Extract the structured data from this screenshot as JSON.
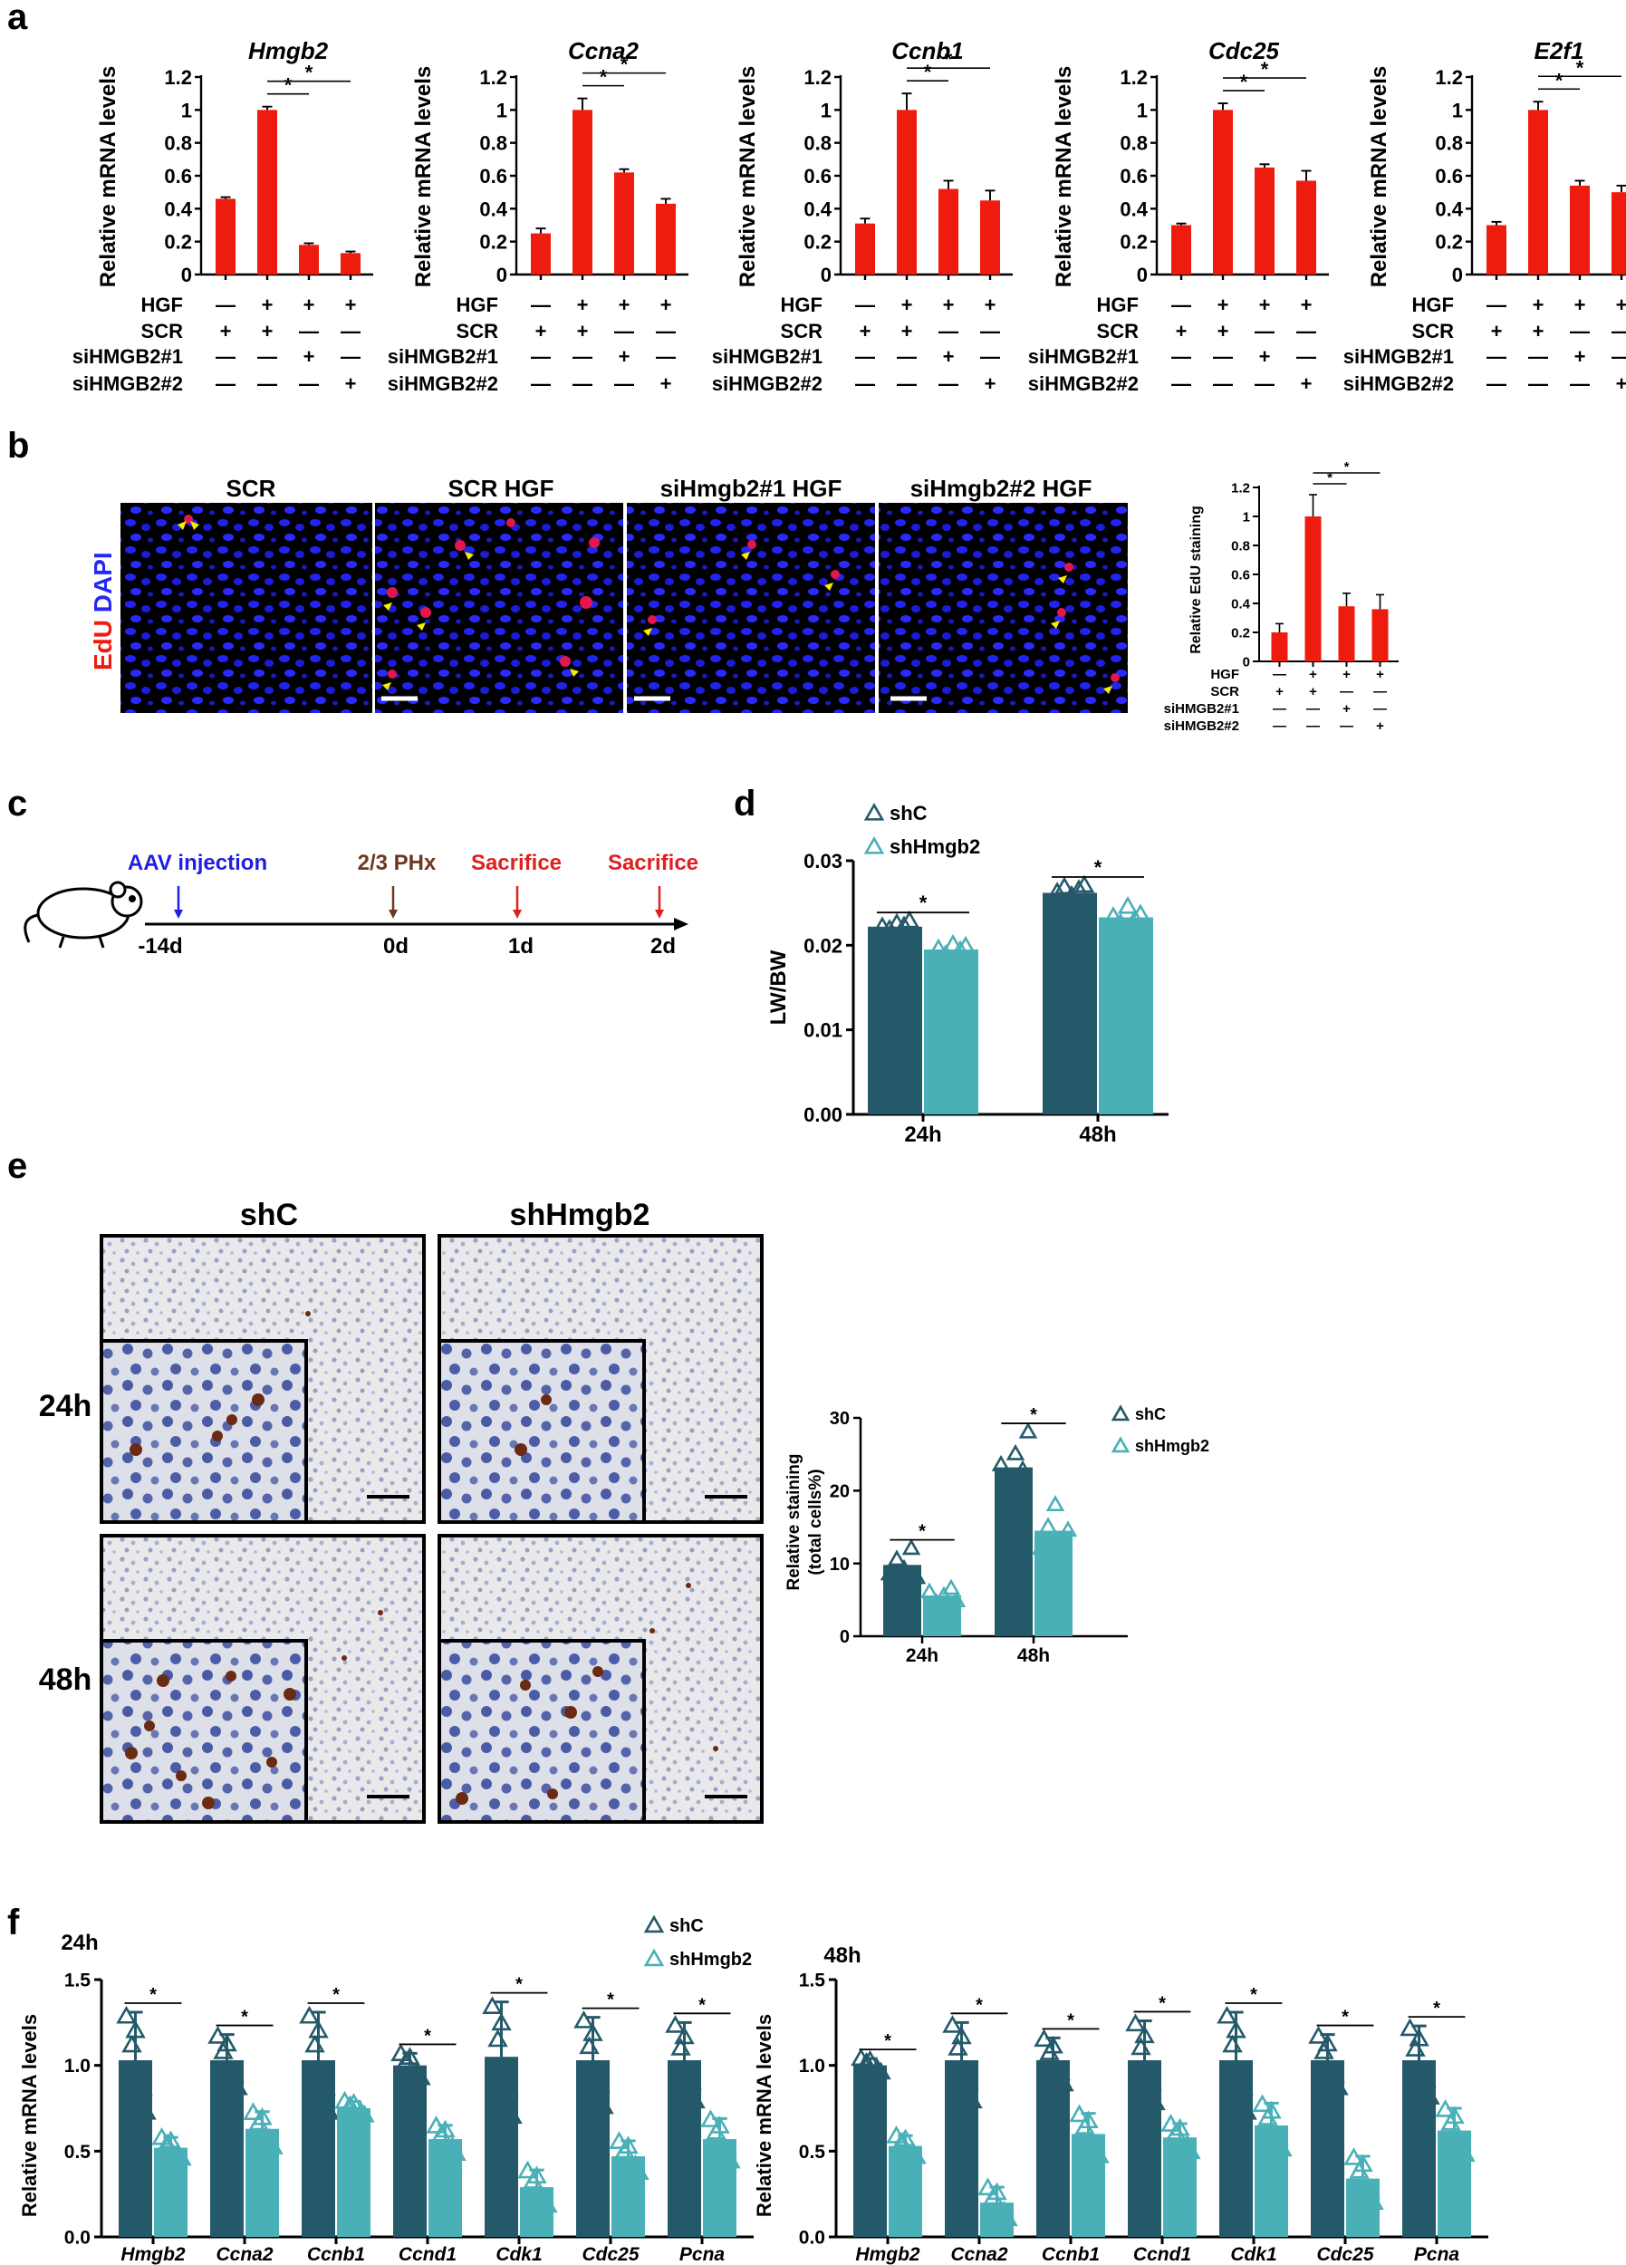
{
  "panel_labels": {
    "a": "a",
    "b": "b",
    "c": "c",
    "d": "d",
    "e": "e",
    "f": "f"
  },
  "panel_a": {
    "ylabel": "Relative mRNA levels",
    "yticks": [
      "0",
      "0.2",
      "0.4",
      "0.6",
      "0.8",
      "1",
      "1.2"
    ],
    "row_labels": [
      "HGF",
      "SCR",
      "siHMGB2#1",
      "siHMGB2#2"
    ],
    "signs": [
      [
        "—",
        "+",
        "+",
        "+"
      ],
      [
        "+",
        "+",
        "—",
        "—"
      ],
      [
        "—",
        "—",
        "+",
        "—"
      ],
      [
        "—",
        "—",
        "—",
        "+"
      ]
    ],
    "sig": "*"
  },
  "panel_b": {
    "ylabel": "Relative EdU staining",
    "yticks": [
      "0",
      "0.2",
      "0.4",
      "0.6",
      "0.8",
      "1",
      "1.2"
    ],
    "image_titles": [
      "SCR",
      "SCR HGF",
      "siHmgb2#1 HGF",
      "siHmgb2#2 HGF"
    ],
    "stain_label_edu": "EdU",
    "stain_label_dapi": "DAPI",
    "row_labels": [
      "HGF",
      "SCR",
      "siHMGB2#1",
      "siHMGB2#2"
    ],
    "signs": [
      [
        "—",
        "+",
        "+",
        "+"
      ],
      [
        "+",
        "+",
        "—",
        "—"
      ],
      [
        "—",
        "—",
        "+",
        "—"
      ],
      [
        "—",
        "—",
        "—",
        "+"
      ]
    ],
    "sig": "*"
  },
  "panel_c": {
    "events": [
      "AAV injection",
      "2/3 PHx",
      "Sacrifice",
      "Sacrifice"
    ],
    "days": [
      "-14d",
      "0d",
      "1d",
      "2d"
    ],
    "colors": {
      "aav": "#1f1fe0",
      "phx": "#6b3a1e",
      "sac": "#e01f1f"
    }
  },
  "panel_d": {
    "ylabel": "LW/BW",
    "yticks": [
      "0.00",
      "0.01",
      "0.02",
      "0.03"
    ],
    "legend": [
      "shC",
      "shHmgb2"
    ],
    "sig": "*"
  },
  "panel_e": {
    "col_titles": [
      "shC",
      "shHmgb2"
    ],
    "row_titles": [
      "24h",
      "48h"
    ],
    "ylabel1": "Relative staining",
    "ylabel2": "(total cells%)",
    "yticks": [
      "0",
      "10",
      "20",
      "30"
    ],
    "legend": [
      "shC",
      "shHmgb2"
    ],
    "sig": "*"
  },
  "panel_f": {
    "titles": [
      "24h",
      "48h"
    ],
    "ylabel": "Relative mRNA levels",
    "yticks": [
      "0.0",
      "0.5",
      "1.0",
      "1.5"
    ],
    "legend": [
      "shC",
      "shHmgb2"
    ],
    "sig": "*"
  },
  "colors": {
    "red": "#ee1c0e",
    "dark": "#24596a",
    "light": "#4ab0b8"
  },
  "chart_data": [
    {
      "type": "bar",
      "panel": "a",
      "title": "Hmgb2",
      "categories": [
        "1",
        "2",
        "3",
        "4"
      ],
      "values": [
        0.46,
        1.0,
        0.18,
        0.13
      ],
      "errors": [
        0.01,
        0.02,
        0.01,
        0.01
      ],
      "ylim": [
        0,
        1.2
      ],
      "ylabel": "Relative mRNA levels"
    },
    {
      "type": "bar",
      "panel": "a",
      "title": "Ccna2",
      "categories": [
        "1",
        "2",
        "3",
        "4"
      ],
      "values": [
        0.25,
        1.0,
        0.62,
        0.43
      ],
      "errors": [
        0.03,
        0.07,
        0.02,
        0.03
      ],
      "ylim": [
        0,
        1.2
      ],
      "ylabel": "Relative mRNA levels"
    },
    {
      "type": "bar",
      "panel": "a",
      "title": "Ccnb1",
      "categories": [
        "1",
        "2",
        "3",
        "4"
      ],
      "values": [
        0.31,
        1.0,
        0.52,
        0.45
      ],
      "errors": [
        0.03,
        0.1,
        0.05,
        0.06
      ],
      "ylim": [
        0,
        1.2
      ],
      "ylabel": "Relative mRNA levels"
    },
    {
      "type": "bar",
      "panel": "a",
      "title": "Cdc25",
      "categories": [
        "1",
        "2",
        "3",
        "4"
      ],
      "values": [
        0.3,
        1.0,
        0.65,
        0.57
      ],
      "errors": [
        0.01,
        0.04,
        0.02,
        0.06
      ],
      "ylim": [
        0,
        1.2
      ],
      "ylabel": "Relative mRNA levels"
    },
    {
      "type": "bar",
      "panel": "a",
      "title": "E2f1",
      "categories": [
        "1",
        "2",
        "3",
        "4"
      ],
      "values": [
        0.3,
        1.0,
        0.54,
        0.5
      ],
      "errors": [
        0.02,
        0.05,
        0.03,
        0.04
      ],
      "ylim": [
        0,
        1.2
      ],
      "ylabel": "Relative mRNA levels"
    },
    {
      "type": "bar",
      "panel": "b",
      "categories": [
        "1",
        "2",
        "3",
        "4"
      ],
      "values": [
        0.2,
        1.0,
        0.38,
        0.36
      ],
      "errors": [
        0.06,
        0.15,
        0.09,
        0.1
      ],
      "ylim": [
        0,
        1.2
      ],
      "ylabel": "Relative EdU staining"
    },
    {
      "type": "bar",
      "panel": "d",
      "categories": [
        "24h",
        "48h"
      ],
      "series": [
        {
          "name": "shC",
          "values": [
            0.0222,
            0.0262
          ],
          "points": [
            [
              0.0221,
              0.0218,
              0.0225,
              0.0222,
              0.0228
            ],
            [
              0.0262,
              0.0268,
              0.0258,
              0.0265,
              0.027
            ]
          ]
        },
        {
          "name": "shHmgb2",
          "values": [
            0.0195,
            0.0233
          ],
          "points": [
            [
              0.0195,
              0.0188,
              0.02,
              0.0193,
              0.0198
            ],
            [
              0.0233,
              0.0225,
              0.0245,
              0.023,
              0.0236
            ]
          ]
        }
      ],
      "ylim": [
        0,
        0.03
      ],
      "ylabel": "LW/BW"
    },
    {
      "type": "bar",
      "panel": "e",
      "categories": [
        "24h",
        "48h"
      ],
      "series": [
        {
          "name": "shC",
          "values": [
            9.8,
            23.2
          ],
          "points": [
            [
              8.5,
              10.5,
              9.2,
              12.0,
              8.0
            ],
            [
              23.5,
              21.0,
              25.0,
              22.8,
              28.0
            ]
          ]
        },
        {
          "name": "shHmgb2",
          "values": [
            5.6,
            14.5
          ],
          "points": [
            [
              6.0,
              4.5,
              5.5,
              6.5,
              4.8
            ],
            [
              12.0,
              15.0,
              18.0,
              13.0,
              14.5
            ]
          ]
        }
      ],
      "ylim": [
        0,
        30
      ],
      "ylabel": "Relative staining (total cells%)"
    },
    {
      "type": "bar",
      "panel": "f",
      "title": "24h",
      "categories": [
        "Hmgb2",
        "Ccna2",
        "Ccnb1",
        "Ccnd1",
        "Cdk1",
        "Cdc25",
        "Pcna"
      ],
      "series": [
        {
          "name": "shC",
          "values": [
            1.03,
            1.03,
            1.03,
            1.0,
            1.05,
            1.03,
            1.03
          ],
          "errors": [
            0.28,
            0.15,
            0.28,
            0.07,
            0.32,
            0.25,
            0.22
          ]
        },
        {
          "name": "shHmgb2",
          "values": [
            0.52,
            0.63,
            0.75,
            0.57,
            0.29,
            0.47,
            0.57
          ],
          "errors": [
            0.06,
            0.1,
            0.04,
            0.08,
            0.1,
            0.09,
            0.12
          ]
        }
      ],
      "ylim": [
        0,
        1.5
      ],
      "ylabel": "Relative mRNA levels"
    },
    {
      "type": "bar",
      "panel": "f",
      "title": "48h",
      "categories": [
        "Hmgb2",
        "Ccna2",
        "Ccnb1",
        "Ccnd1",
        "Cdk1",
        "Cdc25",
        "Pcna"
      ],
      "series": [
        {
          "name": "shC",
          "values": [
            1.0,
            1.03,
            1.03,
            1.03,
            1.03,
            1.03,
            1.03
          ],
          "errors": [
            0.04,
            0.22,
            0.13,
            0.23,
            0.28,
            0.15,
            0.2
          ]
        },
        {
          "name": "shHmgb2",
          "values": [
            0.53,
            0.2,
            0.6,
            0.58,
            0.65,
            0.34,
            0.62
          ],
          "errors": [
            0.06,
            0.09,
            0.12,
            0.08,
            0.13,
            0.13,
            0.13
          ]
        }
      ],
      "ylim": [
        0,
        1.5
      ],
      "ylabel": "Relative mRNA levels"
    }
  ]
}
